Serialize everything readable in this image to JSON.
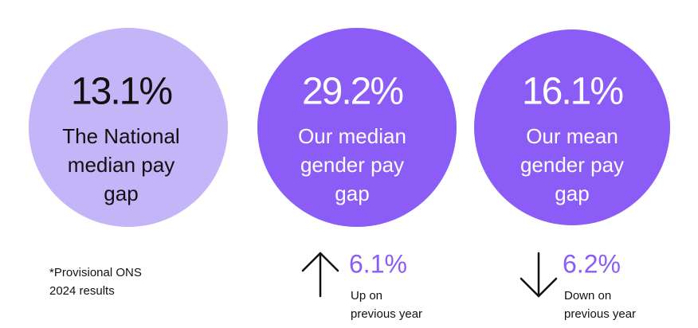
{
  "circles": [
    {
      "figure": "13.1%",
      "lines": [
        "The National",
        "median pay",
        "gap"
      ]
    },
    {
      "figure": "29.2%",
      "lines": [
        "Our median",
        "gender pay",
        "gap"
      ]
    },
    {
      "figure": "16.1%",
      "lines": [
        "Our mean",
        "gender pay",
        "gap"
      ]
    }
  ],
  "footnote": [
    "*Provisional ONS",
    "2024 results"
  ],
  "changes": [
    {
      "figure": "6.1%",
      "lines": [
        "Up on",
        "previous year"
      ]
    },
    {
      "figure": "6.2%",
      "lines": [
        "Down on",
        "previous year"
      ]
    }
  ]
}
